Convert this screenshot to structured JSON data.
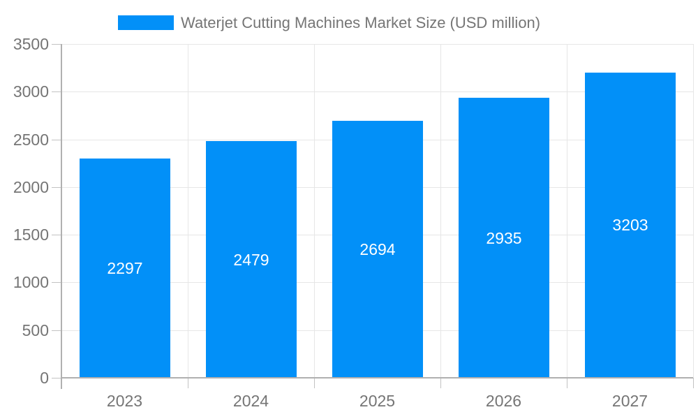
{
  "legend": {
    "label": "Waterjet Cutting Machines Market Size (USD million)"
  },
  "chart_data": {
    "type": "bar",
    "title": "Waterjet Cutting Machines Market Size (USD million)",
    "categories": [
      "2023",
      "2024",
      "2025",
      "2026",
      "2027"
    ],
    "values": [
      2297,
      2479,
      2694,
      2935,
      3203
    ],
    "bar_labels": [
      "2297",
      "2479",
      "2694",
      "2935",
      "3203"
    ],
    "xlabel": "",
    "ylabel": "",
    "ylim": [
      0,
      3500
    ],
    "ytick_step": 500,
    "yticks": [
      0,
      500,
      1000,
      1500,
      2000,
      2500,
      3000,
      3500
    ],
    "grid": true,
    "legend_position": "top",
    "colors": {
      "bar": "#0290F8",
      "bar_label": "#ffffff",
      "axis": "#b0b0b0",
      "tick": "#c2c2c2",
      "grid": "#e6e6e6",
      "text": "#757575"
    }
  }
}
